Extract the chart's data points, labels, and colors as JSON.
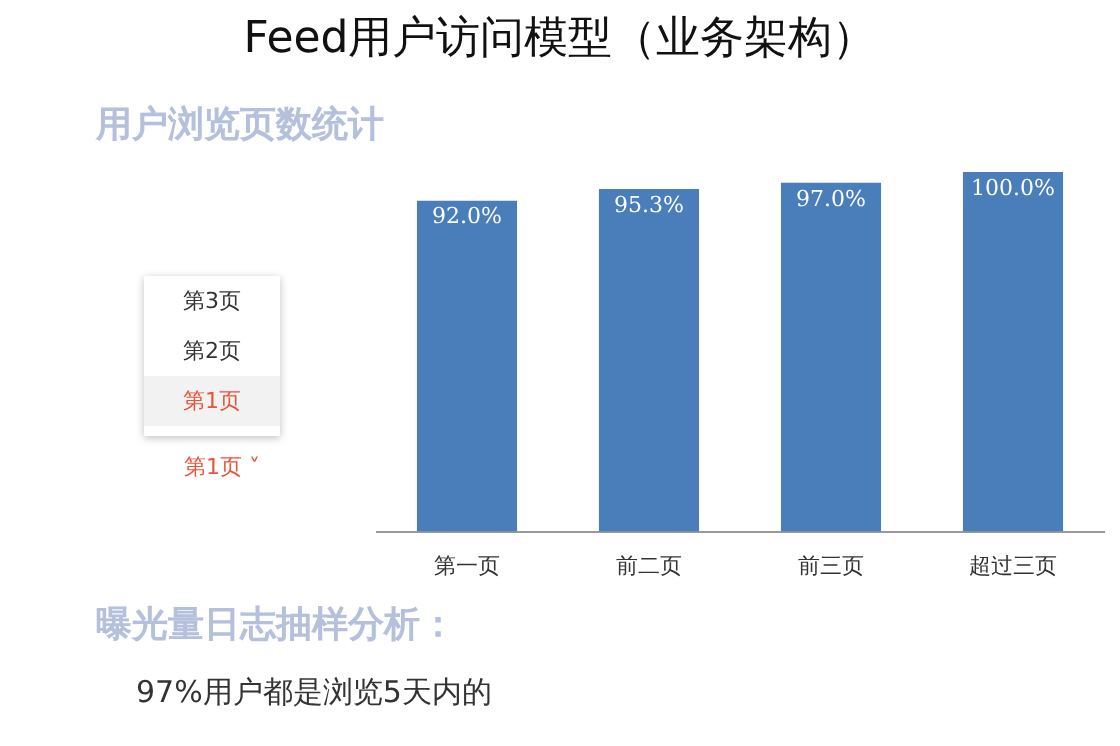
{
  "chart_data": {
    "type": "bar",
    "title": "Feed用户访问模型（业务架构）",
    "subtitle": "用户浏览页数统计",
    "categories": [
      "第一页",
      "前二页",
      "前三页",
      "超过三页"
    ],
    "values": [
      92.0,
      95.3,
      97.0,
      100.0
    ],
    "value_labels": [
      "92.0%",
      "95.3%",
      "97.0%",
      "100.0%"
    ],
    "color": "#4a7ebb",
    "tick_labels": "x",
    "grid": false,
    "legend": false,
    "annotations": [
      "第3页",
      "第2页",
      "第1页",
      "第1页 ˅",
      "曝光量日志抽样分析：",
      "97%用户都是浏览5天内的"
    ]
  }
}
